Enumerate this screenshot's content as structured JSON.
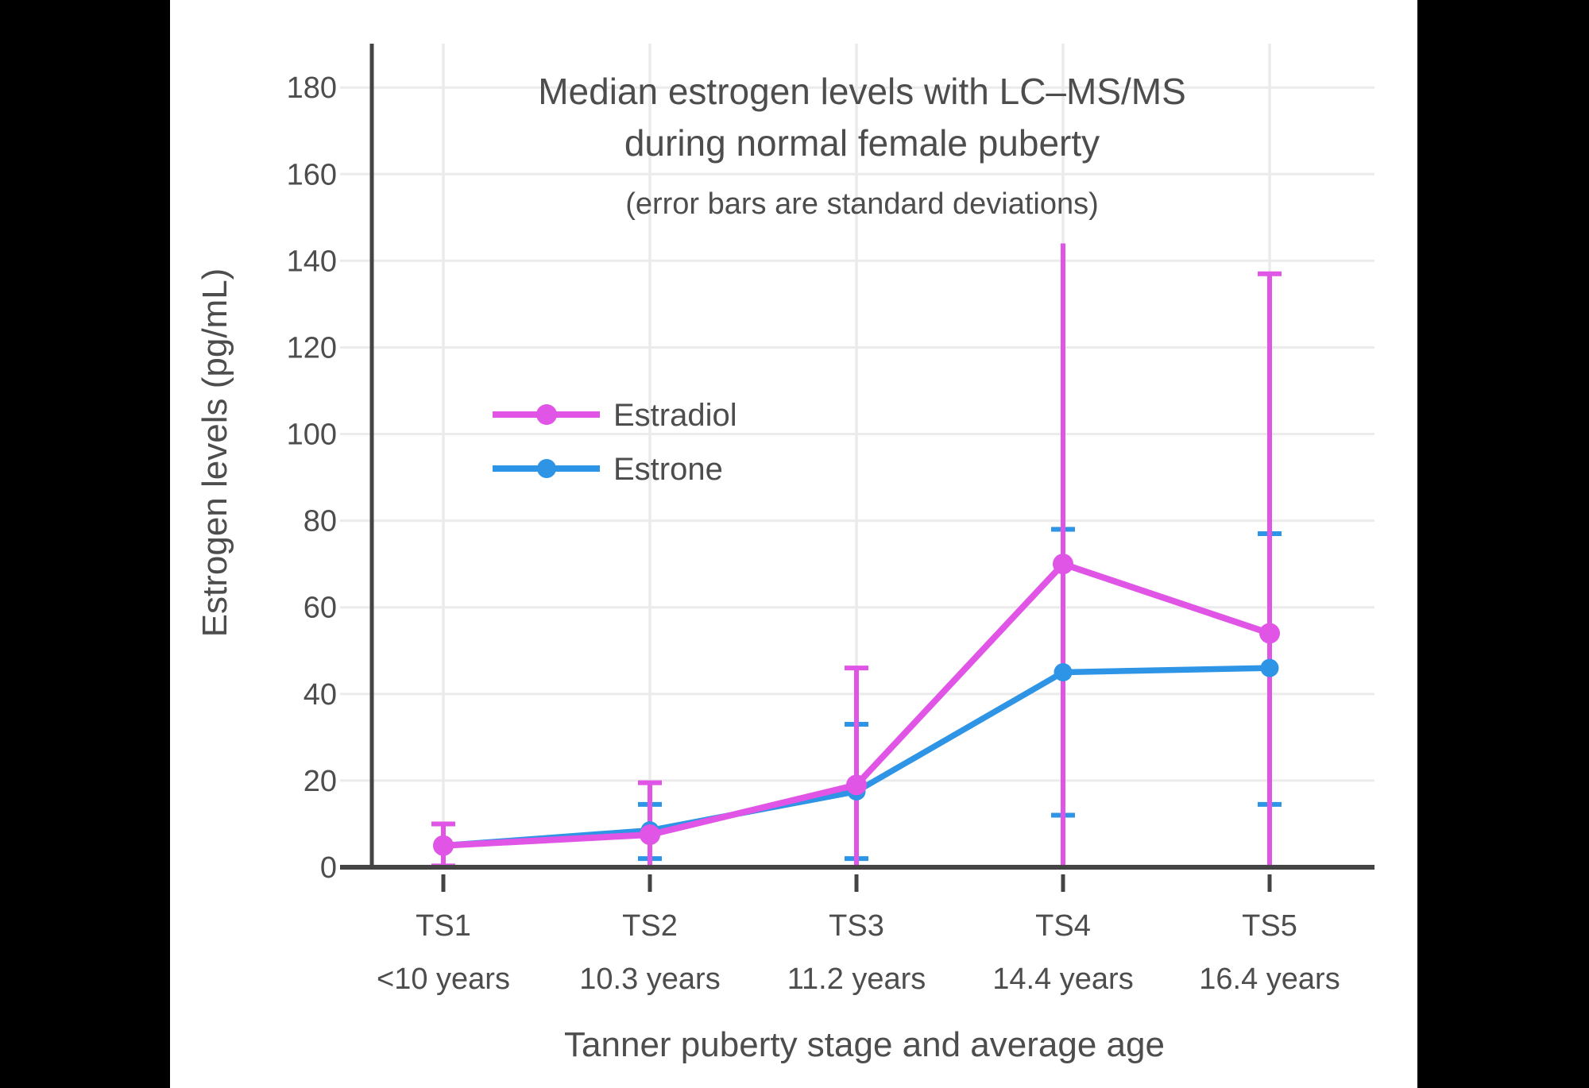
{
  "window": {
    "letterbox_color": "#000000",
    "panel_color": "#ffffff"
  },
  "chart_data": {
    "type": "line",
    "title": "Median estrogen levels with LC–MS/MS during normal female puberty",
    "title_line1": "Median estrogen levels with LC–MS/MS",
    "title_line2": "during normal female puberty",
    "subtitle": "(error bars are standard deviations)",
    "xlabel": "Tanner puberty stage and average age",
    "ylabel": "Estrogen levels (pg/mL)",
    "categories": [
      "TS1",
      "TS2",
      "TS3",
      "TS4",
      "TS5"
    ],
    "category_ages": [
      "<10 years",
      "10.3 years",
      "11.2 years",
      "14.4 years",
      "16.4 years"
    ],
    "yticks": [
      0,
      20,
      40,
      60,
      80,
      100,
      120,
      140,
      160,
      180
    ],
    "ylim": [
      0,
      190
    ],
    "grid": true,
    "legend": {
      "position": "inside-upper-left",
      "entries": [
        "Estradiol",
        "Estrone"
      ]
    },
    "series": [
      {
        "name": "Estradiol",
        "color": "#E055E5",
        "values": [
          5,
          7.5,
          19,
          70,
          54
        ],
        "error_top": [
          10,
          19.5,
          46,
          144,
          137
        ],
        "error_bottom": [
          0.3,
          0,
          0,
          0,
          0
        ],
        "cap_top": [
          true,
          true,
          true,
          false,
          true
        ],
        "cap_bottom": [
          true,
          false,
          false,
          false,
          false
        ]
      },
      {
        "name": "Estrone",
        "color": "#2D94E6",
        "values": [
          5,
          8.5,
          17.5,
          45,
          46
        ],
        "error_top": [
          null,
          14.5,
          33,
          78,
          77
        ],
        "error_bottom": [
          null,
          2,
          2,
          12,
          14.5
        ],
        "cap_top": [
          false,
          true,
          true,
          true,
          true
        ],
        "cap_bottom": [
          false,
          true,
          true,
          true,
          true
        ]
      }
    ],
    "colors": {
      "estradiol": "#E055E5",
      "estrone": "#2D94E6",
      "text": "#4d4d4d",
      "axis": "#444444",
      "grid": "#ebebeb"
    }
  }
}
